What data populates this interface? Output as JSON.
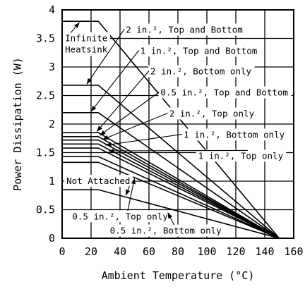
{
  "chart_data": {
    "type": "line",
    "title": "",
    "xlabel": "Ambient Temperature (°C)",
    "ylabel": "Power Dissipation (W)",
    "xlim": [
      0,
      160
    ],
    "ylim": [
      0,
      4
    ],
    "xticks": [
      "0",
      "20",
      "40",
      "60",
      "80",
      "100",
      "120",
      "140",
      "160"
    ],
    "yticks": [
      "0",
      "0.5",
      "1",
      "1.5",
      "2",
      "2.5",
      "3",
      "3.5",
      "4"
    ],
    "grid": true,
    "legend": "none",
    "series": [
      {
        "name": "Infinite Heatsink",
        "x": [
          0,
          25,
          150
        ],
        "y": [
          3.8,
          3.8,
          0
        ]
      },
      {
        "name": "2 in.², Top and Bottom",
        "x": [
          0,
          25,
          150
        ],
        "y": [
          2.68,
          2.68,
          0
        ]
      },
      {
        "name": "1 in.², Top and Bottom",
        "x": [
          0,
          25,
          150
        ],
        "y": [
          2.2,
          2.2,
          0
        ]
      },
      {
        "name": "2 in.², Bottom only",
        "x": [
          0,
          25,
          150
        ],
        "y": [
          1.85,
          1.85,
          0
        ]
      },
      {
        "name": "0.5 in.², Top and Bottom",
        "x": [
          0,
          25,
          150
        ],
        "y": [
          1.78,
          1.78,
          0
        ]
      },
      {
        "name": "2 in.², Top only",
        "x": [
          0,
          25,
          150
        ],
        "y": [
          1.72,
          1.72,
          0
        ]
      },
      {
        "name": "1 in.², Bottom only",
        "x": [
          0,
          25,
          150
        ],
        "y": [
          1.65,
          1.65,
          0
        ]
      },
      {
        "name": "1 in.², Top only",
        "x": [
          0,
          25,
          150
        ],
        "y": [
          1.58,
          1.58,
          0
        ]
      },
      {
        "name": "0.5 in.², Bottom only",
        "x": [
          0,
          25,
          150
        ],
        "y": [
          1.43,
          1.43,
          0
        ]
      },
      {
        "name": "0.5 in.², Top only",
        "x": [
          0,
          25,
          150
        ],
        "y": [
          1.33,
          1.33,
          0
        ]
      },
      {
        "name": "Not Attached",
        "x": [
          0,
          25,
          150
        ],
        "y": [
          0.85,
          0.85,
          0
        ]
      }
    ],
    "annotations": [
      {
        "text": "Infinite",
        "line2": "Heatsink",
        "x": 2,
        "y": 3.45,
        "points_to": {
          "x": 12,
          "y": 3.78
        }
      },
      {
        "text": "2 in.², Top and Bottom",
        "x": 44,
        "y": 3.6,
        "points_to": {
          "x": 17,
          "y": 2.7
        }
      },
      {
        "text": "1 in.², Top and Bottom",
        "x": 54,
        "y": 3.23,
        "points_to": {
          "x": 20,
          "y": 2.22
        }
      },
      {
        "text": "2 in.², Bottom only",
        "x": 61,
        "y": 2.87,
        "points_to": {
          "x": 24,
          "y": 1.87
        }
      },
      {
        "text": "0.5 in.², Top and Bottom",
        "x": 68,
        "y": 2.5,
        "points_to": {
          "x": 26,
          "y": 1.8
        }
      },
      {
        "text": "2 in.², Top only",
        "x": 74,
        "y": 2.13,
        "points_to": {
          "x": 28,
          "y": 1.73
        }
      },
      {
        "text": "1 in.², Bottom only",
        "x": 84,
        "y": 1.76,
        "points_to": {
          "x": 30,
          "y": 1.63
        }
      },
      {
        "text": "1 in.², Top only",
        "x": 94,
        "y": 1.39,
        "points_to": {
          "x": 32,
          "y": 1.53
        }
      },
      {
        "text": "Not Attached",
        "x": 3,
        "y": 0.95,
        "points_to": {
          "x": 44,
          "y": 0.75
        }
      },
      {
        "text": "0.5 in.², Top only",
        "x": 7,
        "y": 0.33,
        "points_to": {
          "x": 50,
          "y": 1.05
        }
      },
      {
        "text": "0.5 in.², Bottom only",
        "x": 33,
        "y": 0.08,
        "points_to": {
          "x": 73,
          "y": 0.45
        }
      }
    ]
  }
}
